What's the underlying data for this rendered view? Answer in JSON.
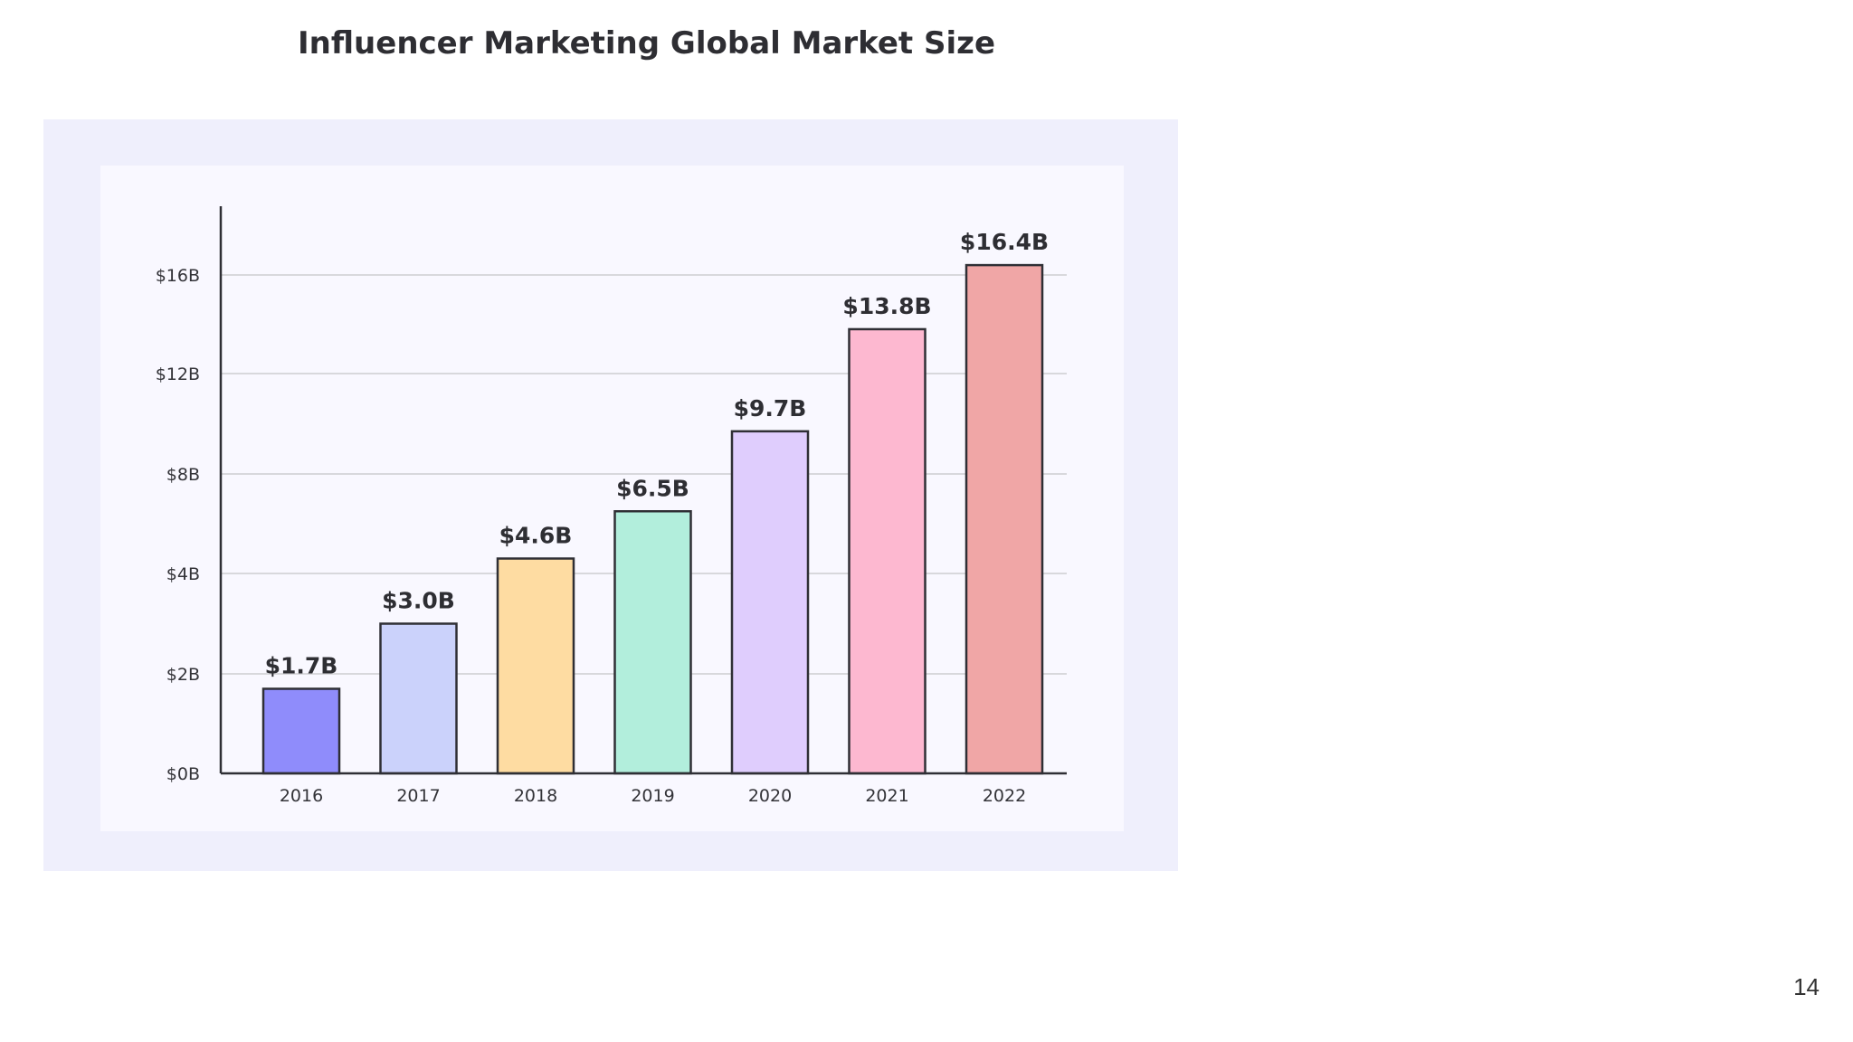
{
  "slide": {
    "title": "Influencer Marketing Global Market Size",
    "page_number": "14"
  },
  "chart_data": {
    "type": "bar",
    "title": "Influencer Marketing Global Market Size",
    "xlabel": "",
    "ylabel": "",
    "categories": [
      "2016",
      "2017",
      "2018",
      "2019",
      "2020",
      "2021",
      "2022"
    ],
    "values": [
      1.7,
      3.0,
      4.6,
      6.5,
      9.7,
      13.8,
      16.4
    ],
    "value_labels": [
      "$1.7B",
      "$3.0B",
      "$4.6B",
      "$6.5B",
      "$9.7B",
      "$13.8B",
      "$16.4B"
    ],
    "y_ticks": [
      {
        "value": 0,
        "label": "$0B"
      },
      {
        "value": 2,
        "label": "$2B"
      },
      {
        "value": 4,
        "label": "$4B"
      },
      {
        "value": 8,
        "label": "$8B"
      },
      {
        "value": 12,
        "label": "$12B"
      },
      {
        "value": 16,
        "label": "$16B"
      }
    ],
    "ylim": [
      0,
      18
    ],
    "grid": true,
    "legend": "none",
    "colors": [
      "#8f8cfb",
      "#cbd2fb",
      "#fedca2",
      "#b2eedc",
      "#dfcdfd",
      "#fdb8d0",
      "#f0a6a6"
    ],
    "bar_outline_color": "#2f2f35",
    "grid_color": "#d8d8dc",
    "panel_background": "#f9f8ff",
    "frame_background": "#efeffc"
  }
}
